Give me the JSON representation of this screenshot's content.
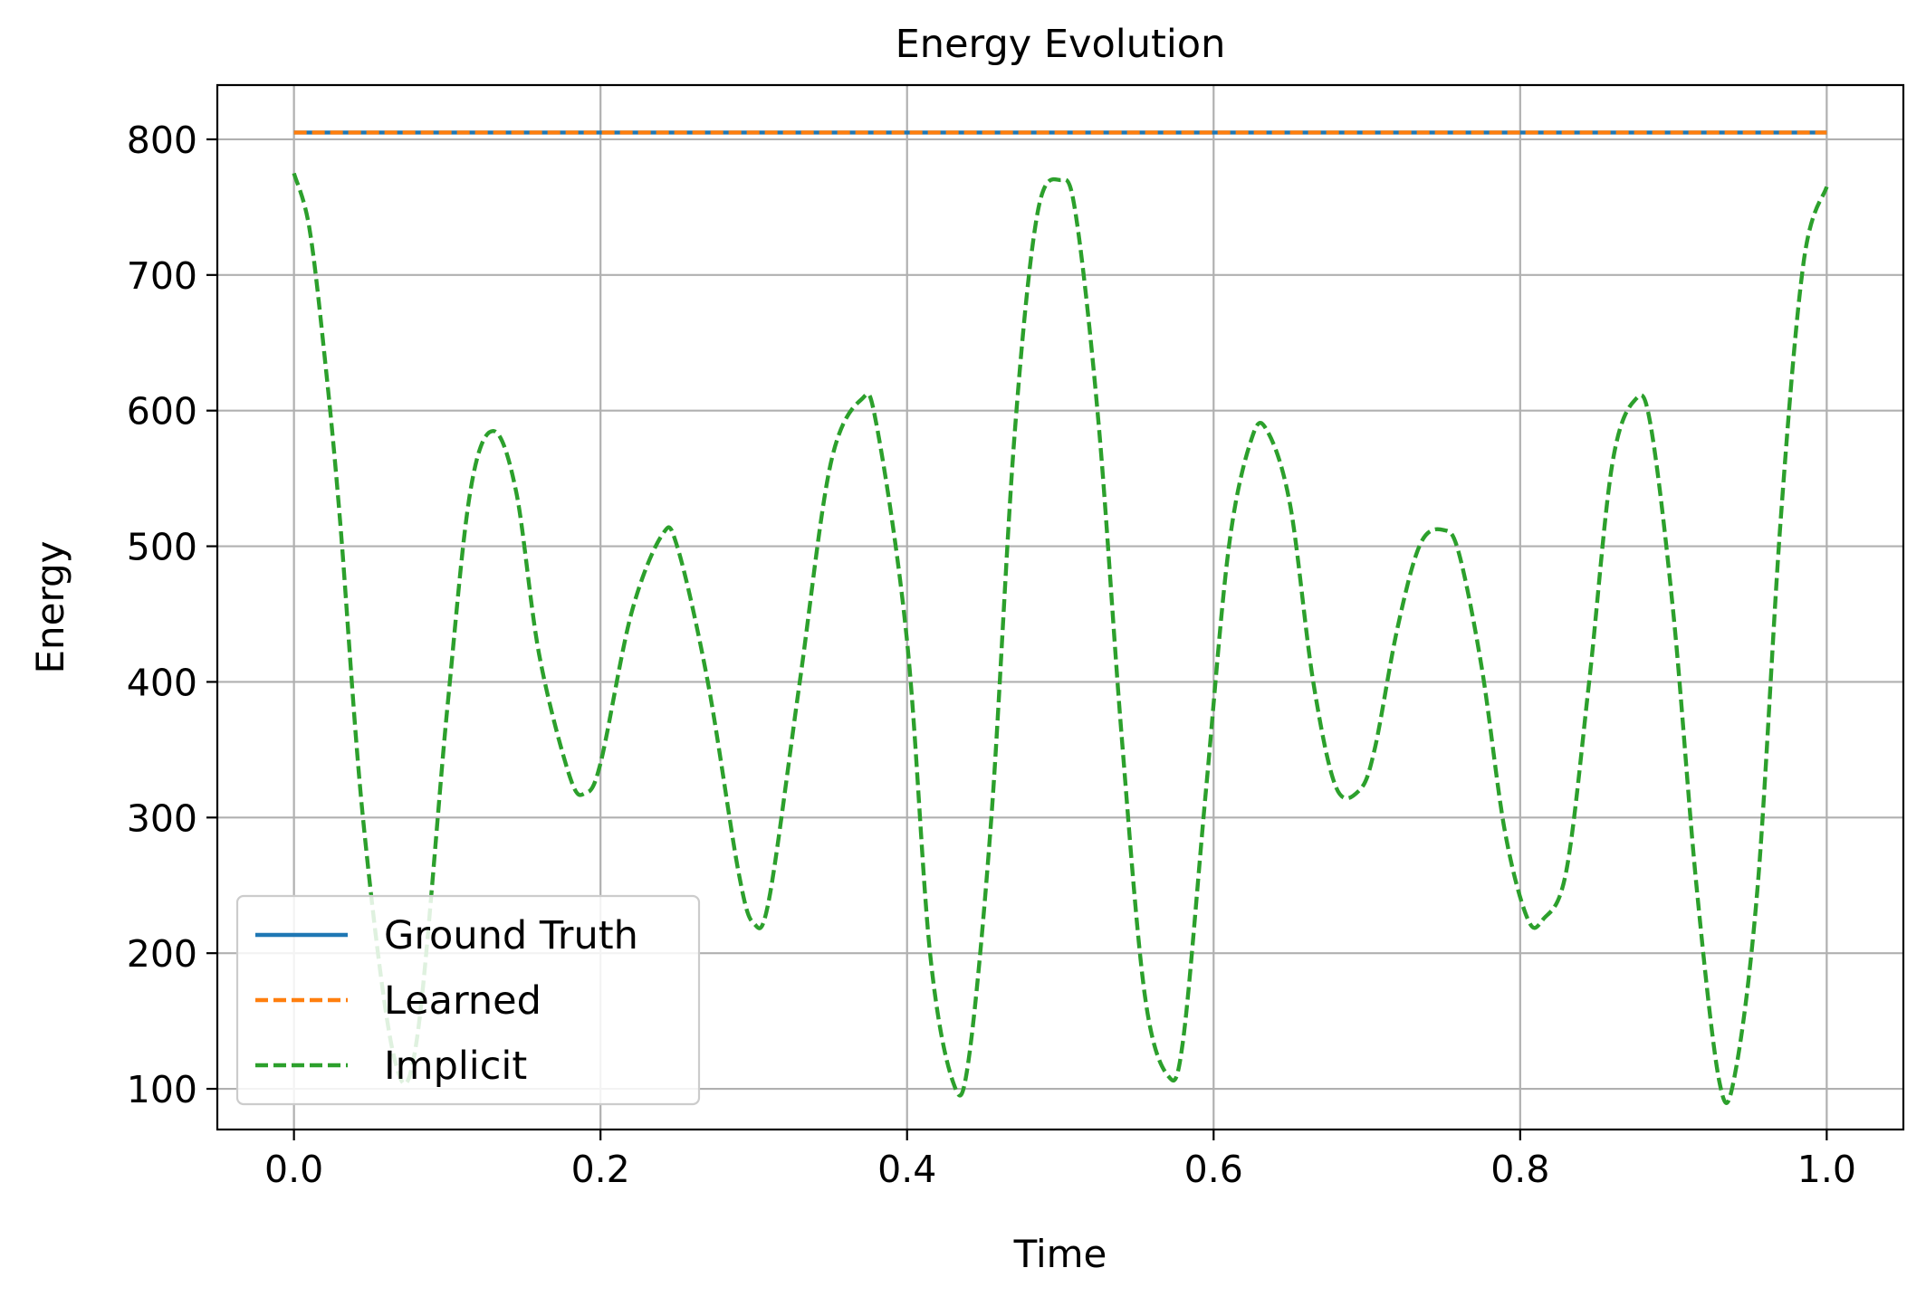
{
  "chart_data": {
    "type": "line",
    "title": "Energy Evolution",
    "xlabel": "Time",
    "ylabel": "Energy",
    "xlim": [
      -0.05,
      1.05
    ],
    "ylim": [
      70,
      840
    ],
    "xticks": [
      0.0,
      0.2,
      0.4,
      0.6,
      0.8,
      1.0
    ],
    "xtick_labels": [
      "0.0",
      "0.2",
      "0.4",
      "0.6",
      "0.8",
      "1.0"
    ],
    "yticks": [
      100,
      200,
      300,
      400,
      500,
      600,
      700,
      800
    ],
    "ytick_labels": [
      "100",
      "200",
      "300",
      "400",
      "500",
      "600",
      "700",
      "800"
    ],
    "grid": true,
    "legend_position": "lower-left",
    "series": [
      {
        "name": "Ground Truth",
        "color": "#1f77b4",
        "style": "solid",
        "x": [
          0.0,
          1.0
        ],
        "y": [
          805,
          805
        ]
      },
      {
        "name": "Learned",
        "color": "#ff7f0e",
        "style": "dashed",
        "x": [
          0.0,
          1.0
        ],
        "y": [
          805,
          805
        ]
      },
      {
        "name": "Implicit",
        "color": "#2ca02c",
        "style": "dashed",
        "x": [
          0.0,
          0.01,
          0.02,
          0.03,
          0.045,
          0.065,
          0.08,
          0.1,
          0.115,
          0.13,
          0.145,
          0.16,
          0.18,
          0.19,
          0.2,
          0.22,
          0.24,
          0.25,
          0.27,
          0.29,
          0.3,
          0.31,
          0.33,
          0.35,
          0.37,
          0.38,
          0.4,
          0.415,
          0.43,
          0.44,
          0.455,
          0.47,
          0.485,
          0.5,
          0.51,
          0.525,
          0.54,
          0.555,
          0.57,
          0.58,
          0.595,
          0.61,
          0.625,
          0.635,
          0.65,
          0.665,
          0.68,
          0.695,
          0.705,
          0.72,
          0.735,
          0.75,
          0.76,
          0.775,
          0.79,
          0.805,
          0.815,
          0.83,
          0.845,
          0.86,
          0.875,
          0.885,
          0.9,
          0.915,
          0.93,
          0.94,
          0.955,
          0.97,
          0.985,
          1.0
        ],
        "y": [
          775,
          735,
          640,
          520,
          300,
          125,
          135,
          380,
          540,
          585,
          540,
          420,
          330,
          318,
          340,
          450,
          508,
          500,
          400,
          260,
          222,
          240,
          400,
          560,
          608,
          590,
          430,
          200,
          105,
          120,
          300,
          580,
          745,
          770,
          745,
          590,
          360,
          170,
          110,
          135,
          320,
          500,
          580,
          585,
          530,
          400,
          322,
          320,
          350,
          440,
          502,
          512,
          495,
          410,
          290,
          225,
          225,
          260,
          400,
          560,
          608,
          590,
          450,
          250,
          105,
          110,
          250,
          520,
          710,
          765
        ]
      }
    ]
  }
}
